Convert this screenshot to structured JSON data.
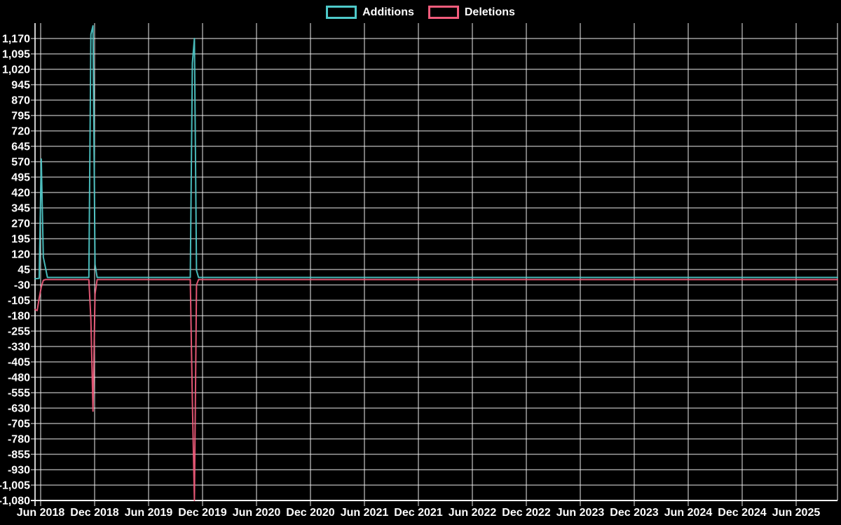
{
  "chart_data": {
    "type": "line",
    "title": "",
    "legend_position": "top",
    "background_color": "#000000",
    "grid": true,
    "grid_color": "#ededed",
    "text_color": "#ffffff",
    "legend": [
      {
        "label": "Additions",
        "color": "#4ec9c9"
      },
      {
        "label": "Deletions",
        "color": "#f25c7c"
      }
    ],
    "x_axis": {
      "tick_labels": [
        "Jun 2018",
        "Dec 2018",
        "Jun 2019",
        "Dec 2019",
        "Jun 2020",
        "Dec 2020",
        "Jun 2021",
        "Dec 2021",
        "Jun 2022",
        "Dec 2022",
        "Jun 2023",
        "Dec 2023",
        "Jun 2024",
        "Dec 2024",
        "Jun 2025"
      ]
    },
    "y_axis": {
      "min": -1080,
      "max": 1170,
      "step": 75,
      "tick_labels": [
        "1,170",
        "1,095",
        "1,020",
        "945",
        "870",
        "795",
        "720",
        "645",
        "570",
        "495",
        "420",
        "345",
        "270",
        "195",
        "120",
        "45",
        "-30",
        "-105",
        "-180",
        "-255",
        "-330",
        "-405",
        "-480",
        "-555",
        "-630",
        "-705",
        "-780",
        "-855",
        "-930",
        "-1,005",
        "-1,080"
      ]
    },
    "series": [
      {
        "name": "Additions",
        "color": "#4ec9c9",
        "points": [
          [
            "2018-05-13",
            0
          ],
          [
            "2018-05-27",
            2
          ],
          [
            "2018-06-03",
            583
          ],
          [
            "2018-06-10",
            105
          ],
          [
            "2018-06-17",
            55
          ],
          [
            "2018-06-24",
            6
          ],
          [
            "2018-11-11",
            6
          ],
          [
            "2018-11-18",
            1190
          ],
          [
            "2018-11-25",
            1232
          ],
          [
            "2018-12-02",
            70
          ],
          [
            "2018-12-09",
            6
          ],
          [
            "2019-10-20",
            6
          ],
          [
            "2019-10-27",
            1050
          ],
          [
            "2019-11-03",
            1170
          ],
          [
            "2019-11-10",
            40
          ],
          [
            "2019-11-17",
            6
          ],
          [
            "2025-10-19",
            6
          ]
        ]
      },
      {
        "name": "Deletions",
        "color": "#f25c7c",
        "points": [
          [
            "2018-05-13",
            -150
          ],
          [
            "2018-05-20",
            -155
          ],
          [
            "2018-05-27",
            -95
          ],
          [
            "2018-06-03",
            -40
          ],
          [
            "2018-06-10",
            -8
          ],
          [
            "2018-06-17",
            -4
          ],
          [
            "2018-11-11",
            -4
          ],
          [
            "2018-11-18",
            -200
          ],
          [
            "2018-11-25",
            -645
          ],
          [
            "2018-12-02",
            -75
          ],
          [
            "2018-12-09",
            -4
          ],
          [
            "2019-10-20",
            -4
          ],
          [
            "2019-10-27",
            -600
          ],
          [
            "2019-11-03",
            -1080
          ],
          [
            "2019-11-10",
            -30
          ],
          [
            "2019-11-17",
            -4
          ],
          [
            "2025-10-19",
            -4
          ]
        ]
      }
    ]
  }
}
